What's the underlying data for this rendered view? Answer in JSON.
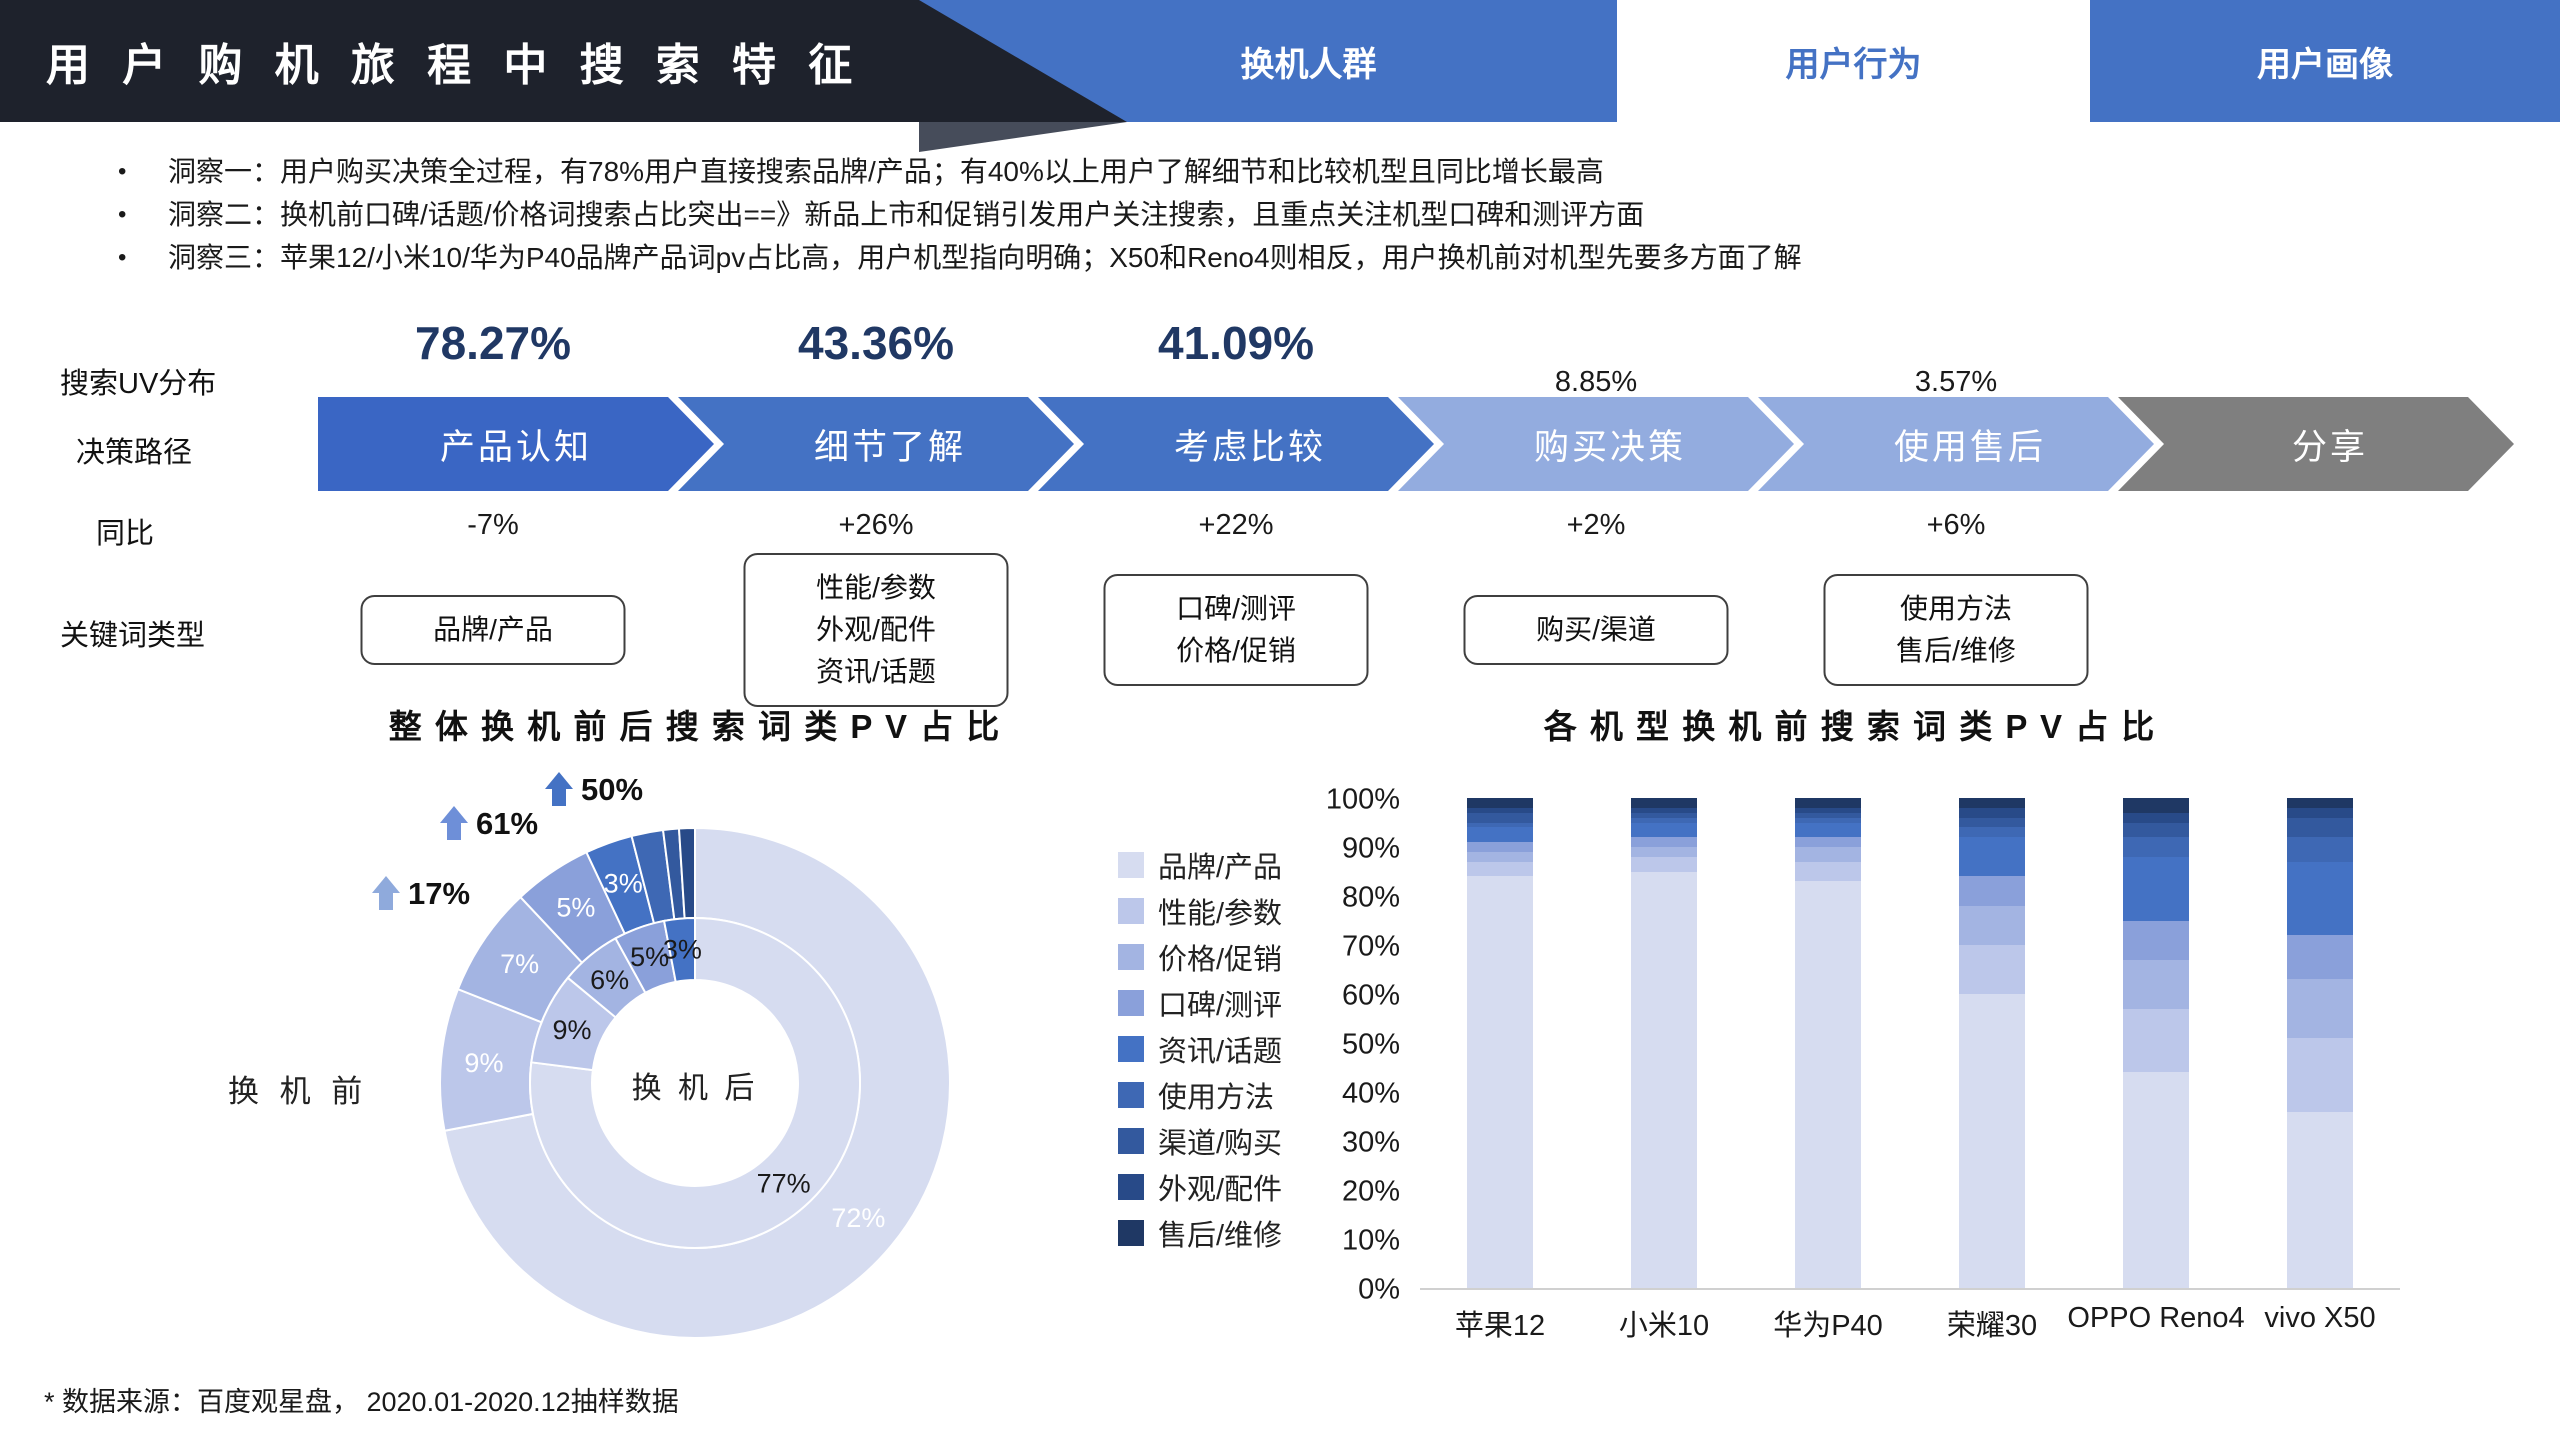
{
  "header": {
    "title": "用 户 购 机 旅 程 中 搜 索 特 征",
    "tabs": [
      {
        "label": "换机人群",
        "active": false
      },
      {
        "label": "用户行为",
        "active": true
      },
      {
        "label": "用户画像",
        "active": false
      }
    ],
    "accent_color": "#4472C4",
    "bar_color": "#1E222C"
  },
  "insights": [
    "洞察一：用户购买决策全过程，有78%用户直接搜索品牌/产品；有40%以上用户了解细节和比较机型且同比增长最高",
    "洞察二：换机前口碑/话题/价格词搜索占比突出==》新品上市和促销引发用户关注搜索，且重点关注机型口碑和测评方面",
    "洞察三：苹果12/小米10/华为P40品牌产品词pv占比高，用户机型指向明确；X50和Reno4则相反，用户换机前对机型先要多方面了解"
  ],
  "journey": {
    "labels": {
      "uv_row": "搜索UV分布",
      "path_row": "决策路径",
      "yoy_row": "同比",
      "keyword_row": "关键词类型"
    },
    "stages": [
      {
        "name": "产品认知",
        "uv": "78.27%",
        "uv_emphasis": true,
        "yoy": "-7%",
        "keywords": [
          "品牌/产品"
        ],
        "color": "#3A66C4"
      },
      {
        "name": "细节了解",
        "uv": "43.36%",
        "uv_emphasis": true,
        "yoy": "+26%",
        "keywords": [
          "性能/参数",
          "外观/配件",
          "资讯/话题"
        ],
        "color": "#4472C4"
      },
      {
        "name": "考虑比较",
        "uv": "41.09%",
        "uv_emphasis": true,
        "yoy": "+22%",
        "keywords": [
          "口碑/测评",
          "价格/促销"
        ],
        "color": "#4472C4"
      },
      {
        "name": "购买决策",
        "uv": "8.85%",
        "uv_emphasis": false,
        "yoy": "+2%",
        "keywords": [
          "购买/渠道"
        ],
        "color": "#93ACDF"
      },
      {
        "name": "使用售后",
        "uv": "3.57%",
        "uv_emphasis": false,
        "yoy": "+6%",
        "keywords": [
          "使用方法",
          "售后/维修"
        ],
        "color": "#93ACDF"
      },
      {
        "name": "分享",
        "uv": null,
        "uv_emphasis": false,
        "yoy": null,
        "keywords": null,
        "color": "#7F7F7F"
      }
    ]
  },
  "chart_data": [
    {
      "type": "pie",
      "subtype": "double_donut",
      "title": "整 体 换 机 前 后 搜 索 词 类 P V 占 比",
      "center_label": "换 机 后",
      "outer_label": "换 机 前",
      "categories": [
        "品牌/产品",
        "性能/参数",
        "价格/促销",
        "口碑/测评",
        "资讯/话题",
        "使用方法",
        "渠道/购买",
        "外观/配件"
      ],
      "rings": [
        {
          "name": "换机前",
          "position": "outer",
          "values": [
            72,
            9,
            7,
            5,
            3,
            2,
            1,
            1
          ]
        },
        {
          "name": "换机后",
          "position": "inner",
          "values": [
            77,
            9,
            6,
            5,
            3
          ]
        }
      ],
      "growth_labels": [
        {
          "text": "50%",
          "arrow": "up",
          "color": "#4472C4"
        },
        {
          "text": "61%",
          "arrow": "up",
          "color": "#6E8FD8"
        },
        {
          "text": "17%",
          "arrow": "up",
          "color": "#8FAADC"
        }
      ]
    },
    {
      "type": "bar",
      "subtype": "stacked_100",
      "title": "各 机 型 换 机 前 搜 索 词 类 P V 占 比",
      "categories": [
        "苹果12",
        "小米10",
        "华为P40",
        "荣耀30",
        "OPPO Reno4",
        "vivo X50"
      ],
      "series": [
        {
          "name": "品牌/产品",
          "color": "#D6DCF0",
          "values": [
            84,
            85,
            83,
            60,
            44,
            36
          ]
        },
        {
          "name": "性能/参数",
          "color": "#BCC7EA",
          "values": [
            3,
            3,
            4,
            10,
            13,
            15
          ]
        },
        {
          "name": "价格/促销",
          "color": "#A3B4E2",
          "values": [
            2,
            2,
            3,
            8,
            10,
            12
          ]
        },
        {
          "name": "口碑/测评",
          "color": "#8AA0DA",
          "values": [
            2,
            2,
            2,
            6,
            8,
            9
          ]
        },
        {
          "name": "资讯/话题",
          "color": "#4472C4",
          "values": [
            3,
            3,
            3,
            8,
            13,
            15
          ]
        },
        {
          "name": "使用方法",
          "color": "#3E68B4",
          "values": [
            1,
            1,
            1,
            2,
            4,
            5
          ]
        },
        {
          "name": "渠道/购买",
          "color": "#33599E",
          "values": [
            2,
            1,
            1,
            2,
            3,
            4
          ]
        },
        {
          "name": "外观/配件",
          "color": "#284A88",
          "values": [
            1,
            1,
            1,
            2,
            2,
            2
          ]
        },
        {
          "name": "售后/维修",
          "color": "#1F3864",
          "values": [
            2,
            2,
            2,
            2,
            3,
            2
          ]
        }
      ],
      "ylim": [
        0,
        100
      ],
      "yticks": [
        "0%",
        "10%",
        "20%",
        "30%",
        "40%",
        "50%",
        "60%",
        "70%",
        "80%",
        "90%",
        "100%"
      ],
      "legend_position": "left",
      "grid": false
    }
  ],
  "footer": "* 数据来源：百度观星盘， 2020.01-2020.12抽样数据"
}
